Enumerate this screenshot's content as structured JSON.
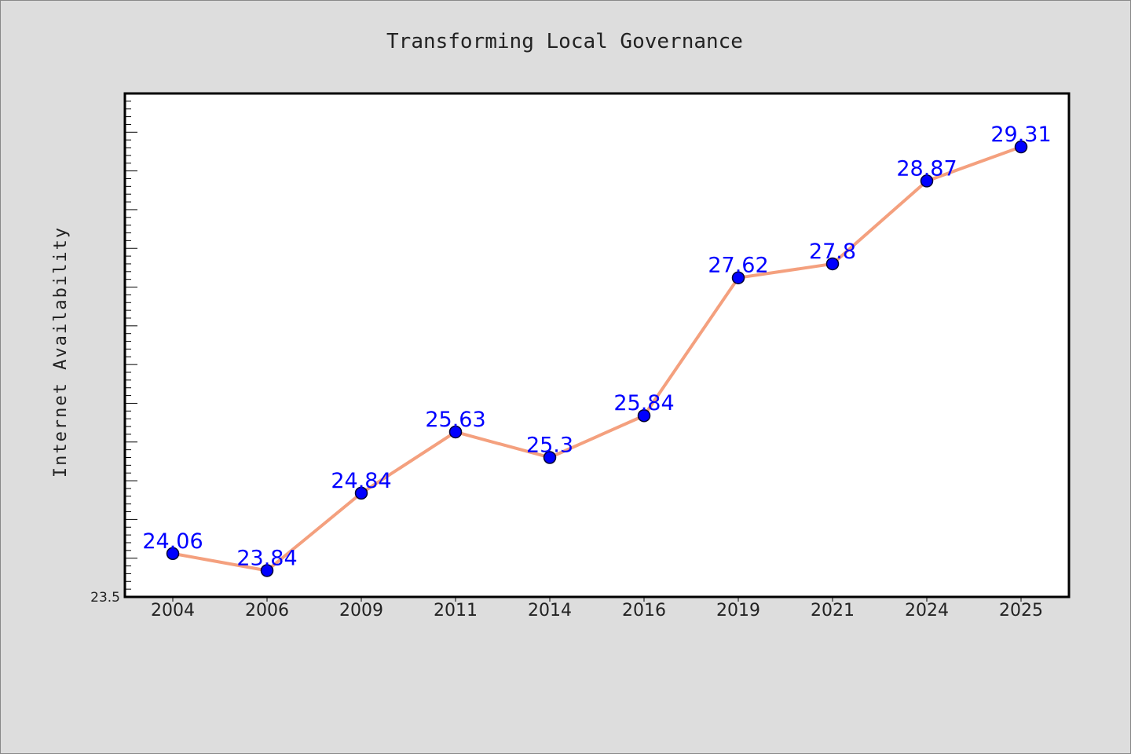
{
  "chart_data": {
    "type": "line",
    "title": "Transforming Local Governance",
    "xlabel": "",
    "ylabel": "Internet Availability",
    "categories": [
      "2004",
      "2006",
      "2009",
      "2011",
      "2014",
      "2016",
      "2019",
      "2021",
      "2024",
      "2025"
    ],
    "series": [
      {
        "values": [
          24.06,
          23.84,
          24.84,
          25.63,
          25.3,
          25.84,
          27.62,
          27.8,
          28.87,
          29.31
        ]
      }
    ],
    "data_labels": [
      "24.06",
      "23.84",
      "24.84",
      "25.63",
      "25.3",
      "25.84",
      "27.62",
      "27.8",
      "28.87",
      "29.31"
    ],
    "ylim": [
      23.5,
      30.0
    ],
    "y_tick_labels": [
      "23.5"
    ],
    "grid": false,
    "legend": "none",
    "colors": {
      "line": "#f4a07e",
      "marker": "#0000ff",
      "label": "#0000ff"
    }
  }
}
